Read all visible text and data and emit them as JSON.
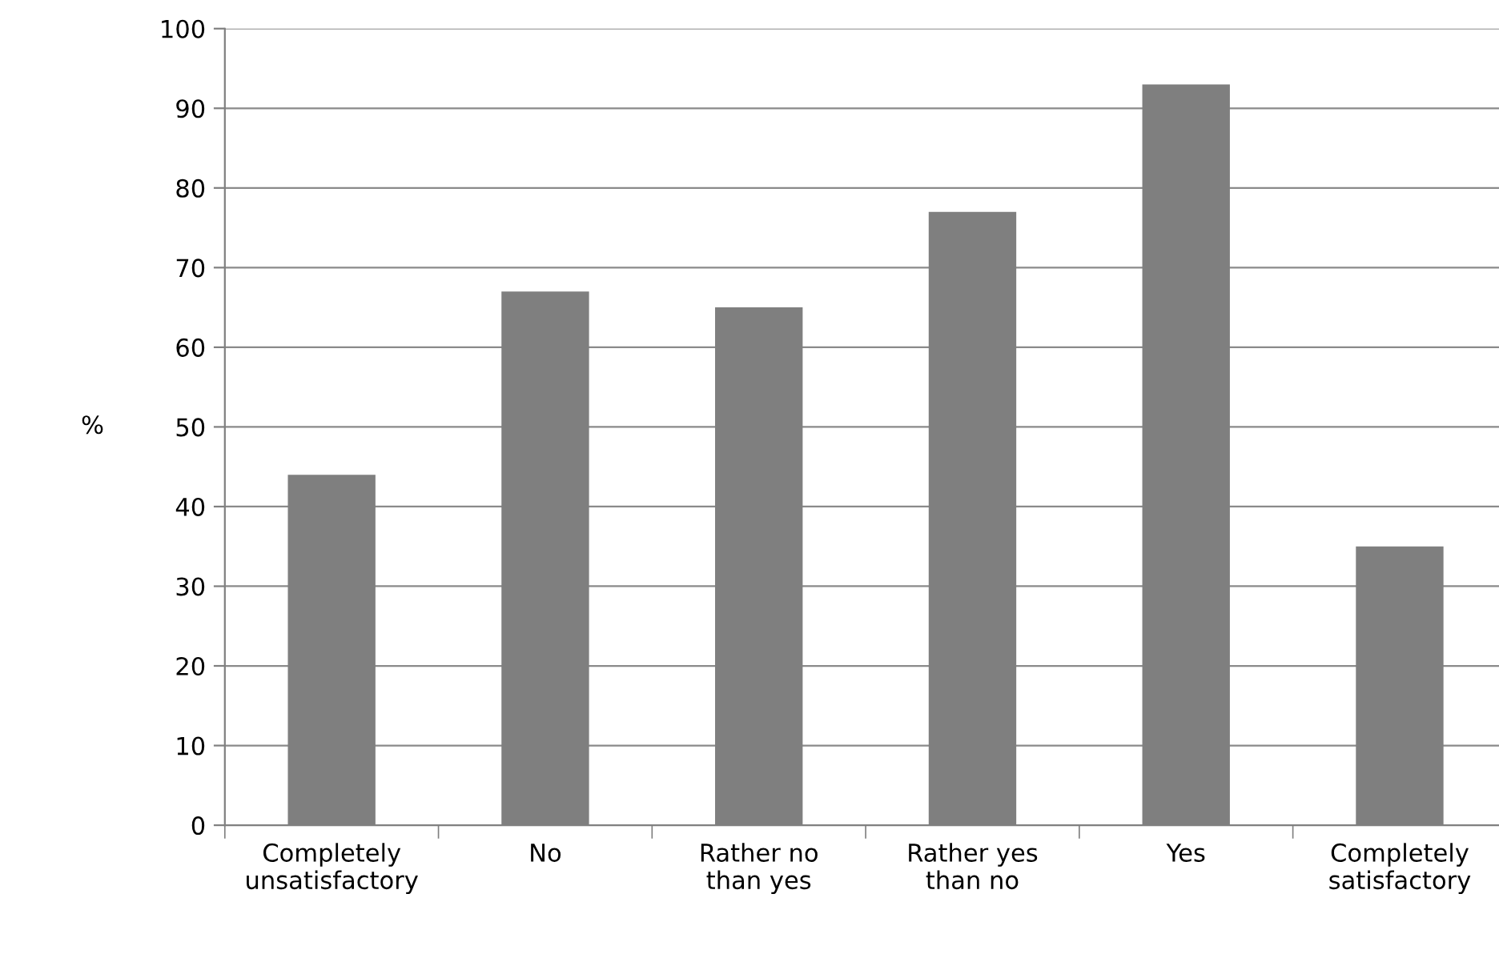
{
  "chart_data": {
    "type": "bar",
    "ylabel": "%",
    "categories": [
      "Completely\nunsatisfactory",
      "No",
      "Rather no\nthan yes",
      "Rather yes\nthan no",
      "Yes",
      "Completely\nsatisfactory"
    ],
    "values": [
      44,
      67,
      65,
      77,
      93,
      35
    ],
    "color": "#7f7f7f",
    "ylim": [
      0,
      100
    ],
    "yticks": [
      0,
      10,
      20,
      30,
      40,
      50,
      60,
      70,
      80,
      90,
      100
    ],
    "grid": "y",
    "legend": false
  }
}
